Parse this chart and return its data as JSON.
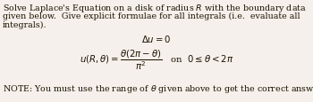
{
  "figsize": [
    3.5,
    1.16
  ],
  "dpi": 100,
  "background_color": "#f5f0eb",
  "body_text_line1": "Solve Laplace's Equation on a disk of radius $R$ with the boundary data",
  "body_text_line2": "given below.  Give explicit formulae for all integrals (i.e.  evaluate all",
  "body_text_line3": "integrals).",
  "eq1": "$\\Delta u = 0$",
  "eq2_left": "$u(R, \\theta) = \\dfrac{\\theta(2\\pi - \\theta)}{\\pi^2}$",
  "eq2_right": "on  $0 \\leq \\theta < 2\\pi$",
  "note": "NOTE: You must use the range of $\\theta$ given above to get the correct answers!",
  "body_fontsize": 6.8,
  "eq_fontsize": 6.8,
  "note_fontsize": 6.8,
  "text_color": "#1a1200"
}
